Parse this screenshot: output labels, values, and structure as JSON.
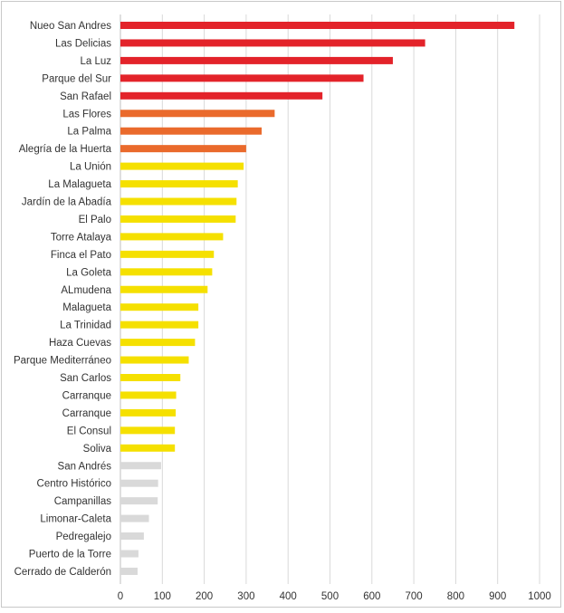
{
  "chart_data": {
    "type": "bar",
    "orientation": "horizontal",
    "title": "",
    "xlabel": "",
    "ylabel": "",
    "xlim": [
      0,
      1000
    ],
    "x_ticks": [
      "0",
      "100",
      "200",
      "300",
      "400",
      "500",
      "600",
      "700",
      "800",
      "900",
      "1000"
    ],
    "grid": "vertical",
    "legend": "none",
    "colors": {
      "red": "#e3232a",
      "orange": "#ea6a2c",
      "yellow": "#f5e000",
      "gray": "#d9d9d9",
      "grid": "#d9d9d9",
      "axis": "#bfbfbf",
      "text": "#333333"
    },
    "bars": [
      {
        "label": "Nueo San Andres",
        "value": 940,
        "color": "red"
      },
      {
        "label": "Las Delicias",
        "value": 727,
        "color": "red"
      },
      {
        "label": "La Luz",
        "value": 650,
        "color": "red"
      },
      {
        "label": "Parque del Sur",
        "value": 580,
        "color": "red"
      },
      {
        "label": "San Rafael",
        "value": 482,
        "color": "red"
      },
      {
        "label": "Las Flores",
        "value": 368,
        "color": "orange"
      },
      {
        "label": "La Palma",
        "value": 337,
        "color": "orange"
      },
      {
        "label": "Alegría de la Huerta",
        "value": 300,
        "color": "orange"
      },
      {
        "label": "La Unión",
        "value": 294,
        "color": "yellow"
      },
      {
        "label": "La Malagueta",
        "value": 280,
        "color": "yellow"
      },
      {
        "label": "Jardín de la Abadía",
        "value": 277,
        "color": "yellow"
      },
      {
        "label": "El Palo",
        "value": 275,
        "color": "yellow"
      },
      {
        "label": "Torre Atalaya",
        "value": 245,
        "color": "yellow"
      },
      {
        "label": "Finca el Pato",
        "value": 223,
        "color": "yellow"
      },
      {
        "label": "La Goleta",
        "value": 219,
        "color": "yellow"
      },
      {
        "label": "ALmudena",
        "value": 208,
        "color": "yellow"
      },
      {
        "label": "Malagueta",
        "value": 186,
        "color": "yellow"
      },
      {
        "label": "La Trinidad",
        "value": 186,
        "color": "yellow"
      },
      {
        "label": "Haza Cuevas",
        "value": 178,
        "color": "yellow"
      },
      {
        "label": "Parque Mediterráneo",
        "value": 163,
        "color": "yellow"
      },
      {
        "label": "San Carlos",
        "value": 143,
        "color": "yellow"
      },
      {
        "label": "Carranque",
        "value": 133,
        "color": "yellow"
      },
      {
        "label": "Carranque",
        "value": 132,
        "color": "yellow"
      },
      {
        "label": "El Consul",
        "value": 130,
        "color": "yellow"
      },
      {
        "label": "Soliva",
        "value": 130,
        "color": "yellow"
      },
      {
        "label": "San Andrés",
        "value": 97,
        "color": "gray"
      },
      {
        "label": "Centro Histórico",
        "value": 90,
        "color": "gray"
      },
      {
        "label": "Campanillas",
        "value": 89,
        "color": "gray"
      },
      {
        "label": "Limonar-Caleta",
        "value": 68,
        "color": "gray"
      },
      {
        "label": "Pedregalejo",
        "value": 56,
        "color": "gray"
      },
      {
        "label": "Puerto de la Torre",
        "value": 43,
        "color": "gray"
      },
      {
        "label": "Cerrado de Calderón",
        "value": 41,
        "color": "gray"
      }
    ]
  }
}
